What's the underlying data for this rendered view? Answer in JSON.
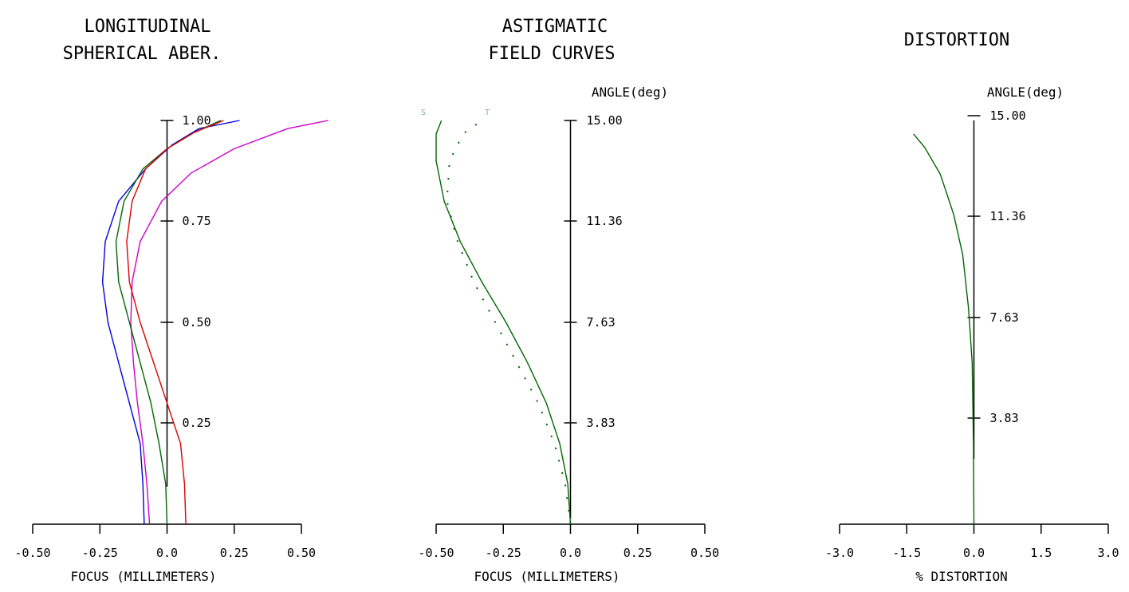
{
  "chart_data": [
    {
      "type": "line",
      "title_line1": "LONGITUDINAL",
      "title_line2": "SPHERICAL ABER.",
      "xlabel": "FOCUS (MILLIMETERS)",
      "xlim": [
        -0.5,
        0.5
      ],
      "ylim": [
        0,
        1.0
      ],
      "x_ticks": [
        "-0.50",
        "-0.25",
        "0.0",
        "0.25",
        "0.50"
      ],
      "y_ticks": [
        "0.25",
        "0.50",
        "0.75",
        "1.00"
      ],
      "series": [
        {
          "color": "#0000dd",
          "points": [
            [
              -0.085,
              0
            ],
            [
              -0.09,
              0.1
            ],
            [
              -0.1,
              0.2
            ],
            [
              -0.14,
              0.3
            ],
            [
              -0.18,
              0.4
            ],
            [
              -0.22,
              0.5
            ],
            [
              -0.24,
              0.6
            ],
            [
              -0.23,
              0.7
            ],
            [
              -0.18,
              0.8
            ],
            [
              -0.08,
              0.88
            ],
            [
              0.02,
              0.94
            ],
            [
              0.12,
              0.98
            ],
            [
              0.27,
              1.0
            ]
          ]
        },
        {
          "color": "#cc00cc",
          "points": [
            [
              -0.065,
              0
            ],
            [
              -0.075,
              0.1
            ],
            [
              -0.09,
              0.2
            ],
            [
              -0.11,
              0.3
            ],
            [
              -0.125,
              0.4
            ],
            [
              -0.135,
              0.5
            ],
            [
              -0.13,
              0.6
            ],
            [
              -0.1,
              0.7
            ],
            [
              -0.02,
              0.8
            ],
            [
              0.09,
              0.87
            ],
            [
              0.25,
              0.93
            ],
            [
              0.45,
              0.98
            ],
            [
              0.6,
              1.0
            ]
          ]
        },
        {
          "color": "#006600",
          "points": [
            [
              0.0,
              0
            ],
            [
              -0.005,
              0.1
            ],
            [
              -0.03,
              0.2
            ],
            [
              -0.06,
              0.3
            ],
            [
              -0.1,
              0.4
            ],
            [
              -0.14,
              0.5
            ],
            [
              -0.18,
              0.6
            ],
            [
              -0.19,
              0.7
            ],
            [
              -0.16,
              0.8
            ],
            [
              -0.09,
              0.88
            ],
            [
              0.0,
              0.93
            ],
            [
              0.1,
              0.97
            ],
            [
              0.2,
              1.0
            ]
          ]
        },
        {
          "color": "#dd0000",
          "points": [
            [
              0.07,
              0
            ],
            [
              0.065,
              0.1
            ],
            [
              0.05,
              0.2
            ],
            [
              0.0,
              0.3
            ],
            [
              -0.05,
              0.4
            ],
            [
              -0.1,
              0.5
            ],
            [
              -0.14,
              0.6
            ],
            [
              -0.15,
              0.7
            ],
            [
              -0.13,
              0.8
            ],
            [
              -0.08,
              0.88
            ],
            [
              0.0,
              0.93
            ],
            [
              0.1,
              0.97
            ],
            [
              0.21,
              1.0
            ]
          ]
        }
      ]
    },
    {
      "type": "line",
      "title_line1": "ASTIGMATIC",
      "title_line2": "FIELD CURVES",
      "xlabel": "FOCUS (MILLIMETERS)",
      "angle_label": "ANGLE(deg)",
      "xlim": [
        -0.5,
        0.5
      ],
      "ylim": [
        0,
        15.0
      ],
      "x_ticks": [
        "-0.50",
        "-0.25",
        "0.0",
        "0.25",
        "0.50"
      ],
      "y_ticks": [
        "3.83",
        "7.63",
        "11.36",
        "15.00"
      ],
      "s_label": "S",
      "t_label": "T",
      "series": [
        {
          "name": "S",
          "color": "#006600",
          "style": "solid",
          "points": [
            [
              0,
              0
            ],
            [
              -0.01,
              1.5
            ],
            [
              -0.04,
              3.0
            ],
            [
              -0.09,
              4.5
            ],
            [
              -0.16,
              6.0
            ],
            [
              -0.24,
              7.5
            ],
            [
              -0.33,
              9.0
            ],
            [
              -0.41,
              10.5
            ],
            [
              -0.47,
              12.0
            ],
            [
              -0.5,
              13.5
            ],
            [
              -0.5,
              14.5
            ],
            [
              -0.48,
              15.0
            ]
          ]
        },
        {
          "name": "T",
          "color": "#006600",
          "style": "dotted",
          "points": [
            [
              0,
              0
            ],
            [
              -0.02,
              1.5
            ],
            [
              -0.06,
              3.0
            ],
            [
              -0.12,
              4.5
            ],
            [
              -0.2,
              6.0
            ],
            [
              -0.28,
              7.5
            ],
            [
              -0.36,
              9.0
            ],
            [
              -0.42,
              10.5
            ],
            [
              -0.46,
              12.0
            ],
            [
              -0.45,
              13.5
            ],
            [
              -0.4,
              14.5
            ],
            [
              -0.33,
              15.0
            ]
          ]
        }
      ]
    },
    {
      "type": "line",
      "title_line1": "DISTORTION",
      "title_line2": "",
      "xlabel": "% DISTORTION",
      "angle_label": "ANGLE(deg)",
      "xlim": [
        -3.0,
        3.0
      ],
      "ylim": [
        0,
        15.0
      ],
      "x_ticks": [
        "-3.0",
        "-1.5",
        "0.0",
        "1.5",
        "3.0"
      ],
      "y_ticks": [
        "3.83",
        "7.63",
        "11.36",
        "15.00"
      ],
      "series": [
        {
          "color": "#006600",
          "style": "solid",
          "points": [
            [
              0,
              0
            ],
            [
              -0.01,
              3.0
            ],
            [
              -0.04,
              6.0
            ],
            [
              -0.12,
              8.0
            ],
            [
              -0.25,
              10.0
            ],
            [
              -0.45,
              11.5
            ],
            [
              -0.75,
              13.0
            ],
            [
              -1.1,
              14.0
            ],
            [
              -1.35,
              14.5
            ]
          ]
        }
      ]
    }
  ]
}
